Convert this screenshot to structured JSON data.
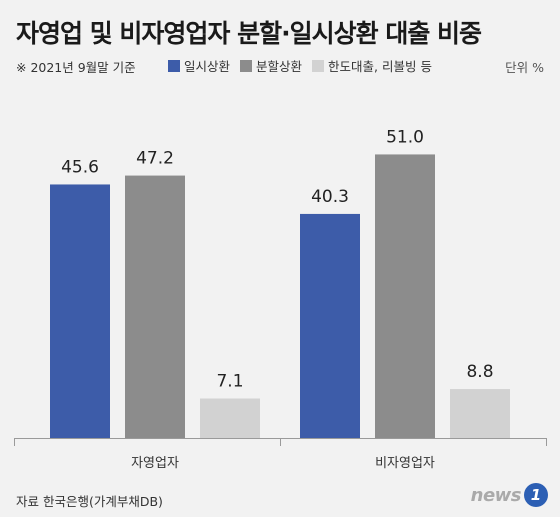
{
  "colors": {
    "background": "#f2f2f2",
    "series": [
      "#3d5ca9",
      "#8c8c8c",
      "#d2d2d2"
    ],
    "axis": "#9a9a9a",
    "logo_mark": "#2c5fb4"
  },
  "header": {
    "title": "자영업 및 비자영업자 분할·일시상환 대출 비중",
    "note": "※ 2021년 9월말 기준",
    "unit": "단위 %"
  },
  "footer": {
    "source": "자료 한국은행(가계부채DB)",
    "logo_text": "news",
    "logo_mark": "1"
  },
  "chart_data": {
    "type": "bar",
    "title": "자영업 및 비자영업자 분할·일시상환 대출 비중",
    "categories": [
      "자영업자",
      "비자영업자"
    ],
    "series": [
      {
        "name": "일시상환",
        "values": [
          45.6,
          40.3
        ],
        "labels": [
          "45.6",
          "40.3"
        ]
      },
      {
        "name": "분할상환",
        "values": [
          47.2,
          51.0
        ],
        "labels": [
          "47.2",
          "51.0"
        ]
      },
      {
        "name": "한도대출, 리볼빙 등",
        "values": [
          7.1,
          8.8
        ],
        "labels": [
          "7.1",
          "8.8"
        ]
      }
    ],
    "ylim": [
      0,
      60
    ],
    "grid": false,
    "legend_position": "top",
    "unit": "%"
  }
}
